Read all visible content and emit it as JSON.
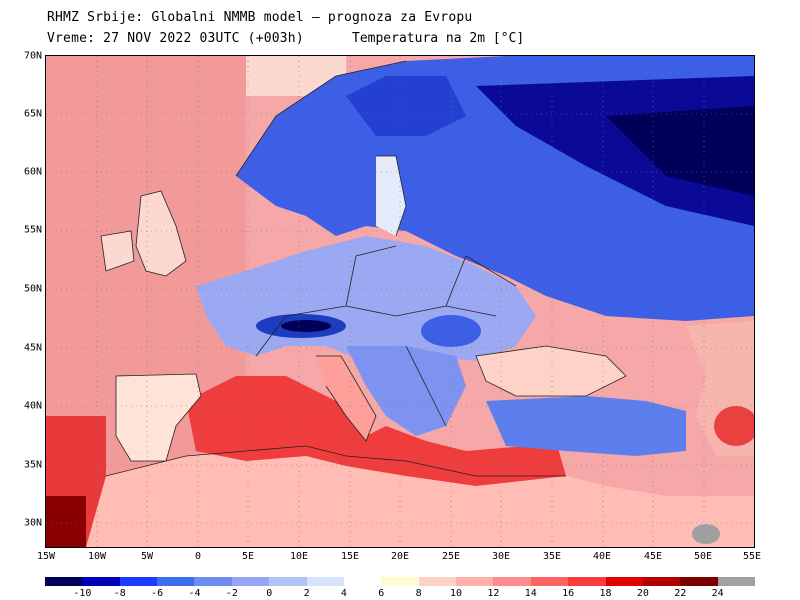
{
  "header": {
    "line1": "RHMZ Srbije: Globalni NMMB model — prognoza za Evropu",
    "line2": "Vreme: 27 NOV 2022 03UTC (+003h)",
    "subtitle": "Temperatura na 2m [°C]"
  },
  "axes": {
    "lat_labels": [
      "70N",
      "65N",
      "60N",
      "55N",
      "50N",
      "45N",
      "40N",
      "35N",
      "30N"
    ],
    "lon_labels": [
      "15W",
      "10W",
      "5W",
      "0",
      "5E",
      "10E",
      "15E",
      "20E",
      "25E",
      "30E",
      "35E",
      "40E",
      "45E",
      "50E",
      "55E"
    ]
  },
  "colorbar": {
    "labels": [
      "-10",
      "-8",
      "-6",
      "-4",
      "-2",
      "0",
      "2",
      "4",
      "6",
      "8",
      "10",
      "12",
      "14",
      "16",
      "18",
      "20",
      "22",
      "24"
    ],
    "colors": [
      "#00005a",
      "#0000b4",
      "#1e3cff",
      "#3c6ef0",
      "#6e8cf0",
      "#96a5f5",
      "#b4c3f5",
      "#d7e1fa",
      "#ffffff",
      "#fffad2",
      "#ffd2c8",
      "#ffafaa",
      "#ff8c8c",
      "#ff6464",
      "#fa3c3c",
      "#e10000",
      "#b40000",
      "#780000",
      "#a0a0a0"
    ]
  },
  "map": {
    "ocean_color": "#f28c8c",
    "land_color": "#6e8cf0"
  }
}
